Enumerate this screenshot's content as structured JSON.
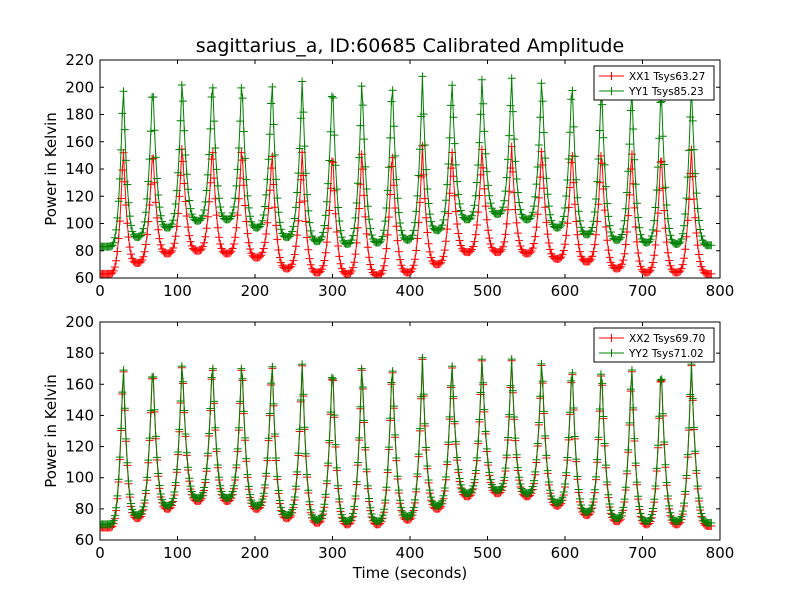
{
  "chart_data": [
    {
      "type": "line",
      "title": "sagittarius_a, ID:60685 Calibrated Amplitude",
      "xlabel": "",
      "ylabel": "Power in Kelvin",
      "xlim": [
        0,
        800
      ],
      "ylim": [
        60,
        220
      ],
      "xticks": [
        0,
        100,
        200,
        300,
        400,
        500,
        600,
        700,
        800
      ],
      "yticks": [
        60,
        80,
        100,
        120,
        140,
        160,
        180,
        200,
        220
      ],
      "grid": false,
      "legend_position": "top-right",
      "marker": "+",
      "series": [
        {
          "name": "XX1 Tsys63.27",
          "color": "#ff0000",
          "peak_x": [
            30,
            68,
            106,
            145,
            183,
            222,
            261,
            300,
            338,
            377,
            416,
            454,
            493,
            531,
            570,
            609,
            647,
            686,
            724,
            763
          ],
          "peak_y": [
            158,
            158,
            160,
            160,
            160,
            155,
            155,
            157,
            157,
            157,
            157,
            157,
            157,
            159,
            158,
            158,
            158,
            157,
            157,
            157
          ],
          "min_x": [
            12,
            48,
            87,
            126,
            164,
            202,
            241,
            280,
            319,
            358,
            397,
            435,
            474,
            513,
            551,
            590,
            628,
            667,
            705,
            744,
            785
          ],
          "min_y": [
            63,
            71,
            78,
            80,
            78,
            75,
            67,
            64,
            63,
            62,
            64,
            70,
            79,
            79,
            78,
            74,
            72,
            67,
            64,
            64,
            63
          ]
        },
        {
          "name": "YY1 Tsys85.23",
          "color": "#008000",
          "peak_x": [
            30,
            68,
            106,
            145,
            183,
            222,
            261,
            300,
            338,
            377,
            416,
            454,
            493,
            531,
            570,
            609,
            647,
            686,
            724,
            763
          ],
          "peak_y": [
            205,
            207,
            209,
            210,
            210,
            208,
            208,
            208,
            209,
            209,
            208,
            208,
            209,
            210,
            210,
            209,
            205,
            205,
            204,
            204
          ],
          "min_x": [
            12,
            48,
            87,
            126,
            164,
            202,
            241,
            280,
            319,
            358,
            397,
            435,
            474,
            513,
            551,
            590,
            628,
            667,
            705,
            744,
            785
          ],
          "min_y": [
            83,
            90,
            97,
            102,
            103,
            97,
            90,
            87,
            85,
            86,
            88,
            95,
            103,
            107,
            103,
            97,
            92,
            88,
            86,
            85,
            84
          ]
        }
      ]
    },
    {
      "type": "line",
      "title": "",
      "xlabel": "Time (seconds)",
      "ylabel": "Power in Kelvin",
      "xlim": [
        0,
        800
      ],
      "ylim": [
        60,
        200
      ],
      "xticks": [
        0,
        100,
        200,
        300,
        400,
        500,
        600,
        700,
        800
      ],
      "yticks": [
        60,
        80,
        100,
        120,
        140,
        160,
        180,
        200
      ],
      "grid": false,
      "legend_position": "top-right",
      "marker": "+",
      "series": [
        {
          "name": "XX2 Tsys69.70",
          "color": "#ff0000",
          "peak_x": [
            30,
            68,
            106,
            145,
            183,
            222,
            261,
            300,
            338,
            377,
            416,
            454,
            493,
            531,
            570,
            609,
            647,
            686,
            724,
            763
          ],
          "peak_y": [
            175,
            176,
            177,
            178,
            178,
            177,
            175,
            176,
            176,
            177,
            176,
            176,
            178,
            178,
            178,
            176,
            175,
            175,
            175,
            175
          ],
          "min_x": [
            12,
            48,
            87,
            126,
            164,
            202,
            241,
            280,
            319,
            358,
            397,
            435,
            474,
            513,
            551,
            590,
            628,
            667,
            705,
            744,
            785
          ],
          "min_y": [
            68,
            74,
            80,
            85,
            85,
            80,
            74,
            71,
            70,
            70,
            73,
            80,
            88,
            90,
            88,
            82,
            76,
            72,
            70,
            70,
            69
          ]
        },
        {
          "name": "YY2 Tsys71.02",
          "color": "#008000",
          "peak_x": [
            30,
            68,
            106,
            145,
            183,
            222,
            261,
            300,
            338,
            377,
            416,
            454,
            493,
            531,
            570,
            609,
            647,
            686,
            724,
            763
          ],
          "peak_y": [
            176,
            177,
            178,
            179,
            179,
            178,
            176,
            177,
            177,
            178,
            177,
            177,
            179,
            179,
            179,
            177,
            176,
            176,
            176,
            176
          ],
          "min_x": [
            12,
            48,
            87,
            126,
            164,
            202,
            241,
            280,
            319,
            358,
            397,
            435,
            474,
            513,
            551,
            590,
            628,
            667,
            705,
            744,
            785
          ],
          "min_y": [
            70,
            76,
            82,
            87,
            87,
            82,
            76,
            73,
            72,
            72,
            75,
            82,
            90,
            92,
            90,
            84,
            78,
            74,
            72,
            72,
            71
          ]
        }
      ]
    }
  ]
}
